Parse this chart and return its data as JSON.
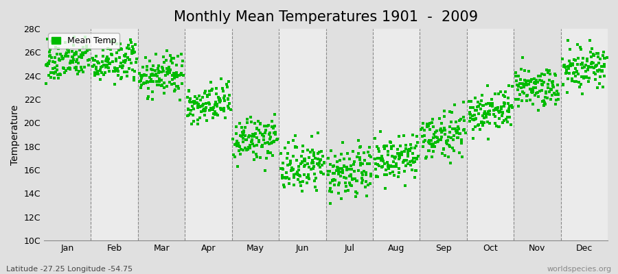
{
  "title": "Monthly Mean Temperatures 1901  -  2009",
  "ylabel": "Temperature",
  "xlabel_months": [
    "Jan",
    "Feb",
    "Mar",
    "Apr",
    "May",
    "Jun",
    "Jul",
    "Aug",
    "Sep",
    "Oct",
    "Nov",
    "Dec"
  ],
  "footer_left": "Latitude -27.25 Longitude -54.75",
  "footer_right": "worldspecies.org",
  "ylim": [
    10,
    28
  ],
  "yticks": [
    10,
    12,
    14,
    16,
    18,
    20,
    22,
    24,
    26,
    28
  ],
  "ytick_labels": [
    "10C",
    "12C",
    "14C",
    "16C",
    "18C",
    "20C",
    "22C",
    "24C",
    "26C",
    "28C"
  ],
  "dot_color": "#00bb00",
  "bg_color": "#e0e0e0",
  "stripe_color": "#ebebeb",
  "n_years": 109,
  "start_year": 1901,
  "end_year": 2009,
  "monthly_mean": [
    25.3,
    25.1,
    24.0,
    21.5,
    18.5,
    16.3,
    15.6,
    16.8,
    18.9,
    21.0,
    23.0,
    24.7
  ],
  "monthly_std": [
    0.85,
    0.85,
    0.85,
    0.85,
    0.95,
    1.05,
    1.1,
    1.05,
    0.95,
    0.9,
    0.9,
    0.85
  ],
  "monthly_min": [
    23.0,
    22.8,
    21.8,
    19.2,
    15.8,
    13.2,
    11.5,
    13.8,
    16.2,
    18.2,
    20.2,
    22.5
  ],
  "monthly_max": [
    27.3,
    27.3,
    26.5,
    24.5,
    21.5,
    19.5,
    18.8,
    19.8,
    21.8,
    23.8,
    25.8,
    27.8
  ],
  "title_fontsize": 15,
  "axis_fontsize": 10,
  "tick_fontsize": 9,
  "legend_fontsize": 9
}
